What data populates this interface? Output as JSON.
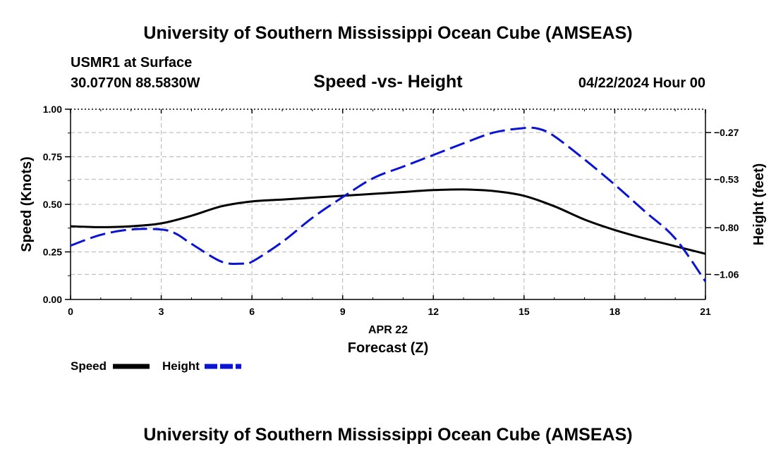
{
  "header": {
    "title": "University of Southern Mississippi Ocean Cube (AMSEAS)",
    "station": "USMR1 at Surface",
    "coordinates": "30.0770N  88.5830W",
    "date": "04/22/2024 Hour 00",
    "footer_title": "University of Southern Mississippi Ocean Cube (AMSEAS)"
  },
  "colors": {
    "speed": "#000000",
    "height": "#0a14d2",
    "grid": "#b4b4b4"
  },
  "chart_data": {
    "type": "line",
    "title": "Speed -vs- Height",
    "xlabel": "Forecast (Z)",
    "date_label": "APR 22",
    "ylabel_left": "Speed (Knots)",
    "ylabel_right": "Height (feet)",
    "x_ticks": [
      "0",
      "3",
      "6",
      "9",
      "12",
      "15",
      "18",
      "21"
    ],
    "x_tick_values": [
      0,
      3,
      6,
      9,
      12,
      15,
      18,
      21
    ],
    "xlim": [
      0,
      21
    ],
    "y_left_ticks": [
      "0.00",
      "0.25",
      "0.50",
      "0.75",
      "1.00"
    ],
    "y_left_tick_values": [
      0,
      0.25,
      0.5,
      0.75,
      1.0
    ],
    "ylim_left": [
      0,
      1
    ],
    "y_right_ticks": [
      "−1.06",
      "−0.80",
      "−0.53",
      "−0.27"
    ],
    "y_right_tick_values": [
      -1.06,
      -0.8,
      -0.53,
      -0.27
    ],
    "ylim_right": [
      -1.2,
      -0.14
    ],
    "grid": true,
    "legend": [
      {
        "name": "Speed",
        "style": "solid"
      },
      {
        "name": "Height",
        "style": "dashed"
      }
    ],
    "series": [
      {
        "name": "Speed",
        "axis": "left",
        "x": [
          0,
          1,
          2,
          3,
          4,
          5,
          6,
          7,
          8,
          9,
          10,
          11,
          12,
          13,
          14,
          15,
          16,
          17,
          18,
          19,
          20,
          21
        ],
        "values": [
          0.385,
          0.38,
          0.385,
          0.4,
          0.44,
          0.49,
          0.515,
          0.525,
          0.535,
          0.545,
          0.555,
          0.565,
          0.575,
          0.578,
          0.57,
          0.545,
          0.49,
          0.42,
          0.365,
          0.32,
          0.28,
          0.24
        ]
      },
      {
        "name": "Height",
        "axis": "right",
        "x": [
          0,
          1,
          2,
          3,
          3.5,
          4,
          5,
          5.7,
          6,
          7,
          8,
          9,
          10,
          11,
          12,
          13,
          14,
          15,
          15.5,
          16,
          17,
          18,
          19,
          20,
          21
        ],
        "values": [
          -0.9,
          -0.84,
          -0.81,
          -0.81,
          -0.835,
          -0.89,
          -0.99,
          -1.0,
          -0.99,
          -0.88,
          -0.745,
          -0.63,
          -0.525,
          -0.46,
          -0.395,
          -0.33,
          -0.27,
          -0.245,
          -0.25,
          -0.29,
          -0.42,
          -0.56,
          -0.71,
          -0.86,
          -1.1
        ]
      }
    ]
  }
}
